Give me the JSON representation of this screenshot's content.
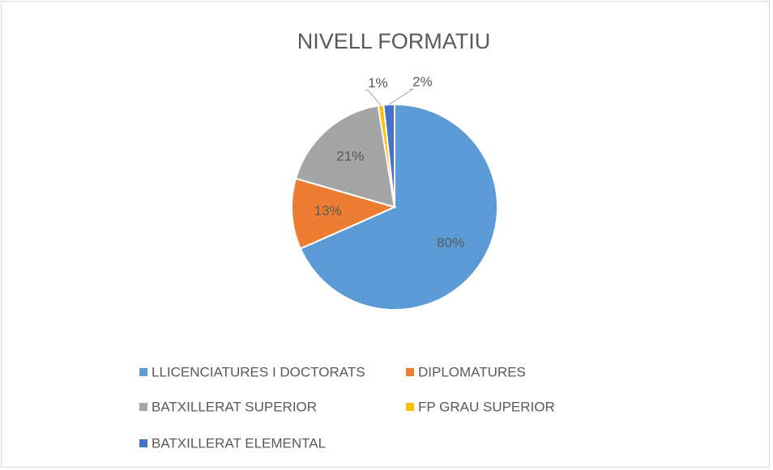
{
  "chart_data": {
    "type": "pie",
    "title": "NIVELL FORMATIU",
    "categories": [
      "LLICENCIATURES I DOCTORATS",
      "DIPLOMATURES",
      "BATXILLERAT SUPERIOR",
      "FP GRAU SUPERIOR",
      "BATXILLERAT ELEMENTAL"
    ],
    "values": [
      80,
      13,
      21,
      1,
      2
    ],
    "value_labels": [
      "80%",
      "13%",
      "21%",
      "1%",
      "2%"
    ],
    "colors": [
      "#5b9bd5",
      "#ed7d31",
      "#a5a5a5",
      "#ffc000",
      "#4472c4"
    ],
    "legend": "bottom"
  }
}
